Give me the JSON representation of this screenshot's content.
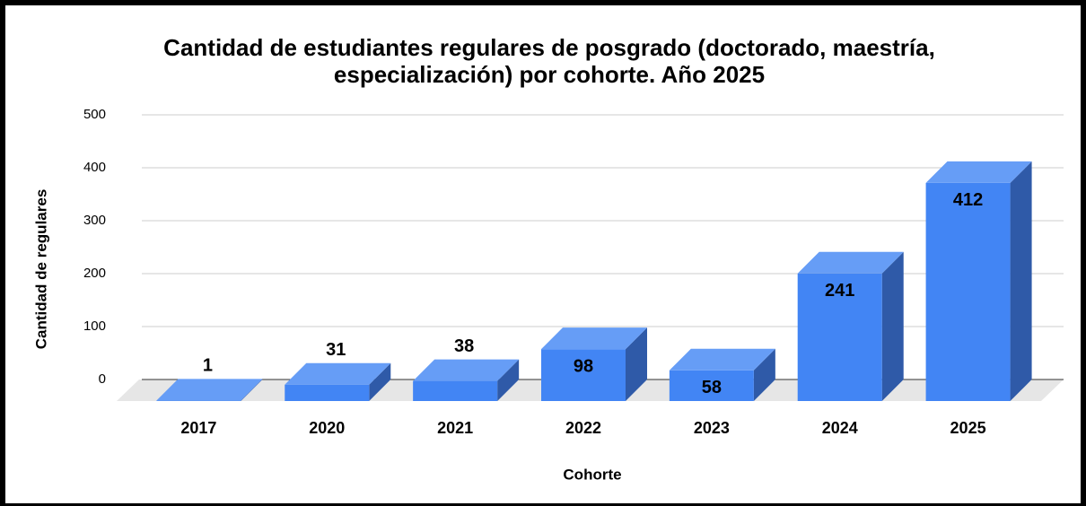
{
  "chart_data": {
    "type": "bar3d",
    "title": [
      "Cantidad de estudiantes regulares de posgrado (doctorado, maestría,",
      "especialización) por cohorte. Año 2025"
    ],
    "x_label": "Cohorte",
    "y_label": "Cantidad de regulares",
    "categories": [
      "2017",
      "2020",
      "2021",
      "2022",
      "2023",
      "2024",
      "2025"
    ],
    "values": [
      1,
      31,
      38,
      98,
      58,
      241,
      412
    ],
    "color": "#4285f4",
    "ylim": [
      0,
      500
    ],
    "yticks": [
      0,
      100,
      200,
      300,
      400,
      500
    ],
    "grid": true
  }
}
